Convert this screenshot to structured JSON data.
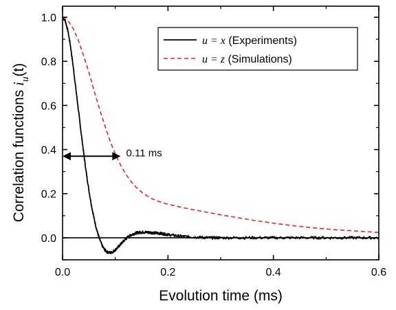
{
  "chart_data": {
    "type": "line",
    "xlabel": "Evolution time (ms)",
    "ylabel": {
      "prefix": "Correlation functions ",
      "var": "i",
      "subscript": "u",
      "suffix": "(t)"
    },
    "xlim": [
      0,
      0.6
    ],
    "ylim": [
      -0.1,
      1.05
    ],
    "x_ticks": [
      0.0,
      0.2,
      0.4,
      0.6
    ],
    "x_tick_labels": [
      "0.0",
      "0.2",
      "0.4",
      "0.6"
    ],
    "y_ticks": [
      0.0,
      0.2,
      0.4,
      0.6,
      0.8,
      1.0
    ],
    "y_tick_labels": [
      "0.0",
      "0.2",
      "0.4",
      "0.6",
      "0.8",
      "1.0"
    ],
    "grid": false,
    "legend_position": "top-right",
    "series": [
      {
        "name": "u = x (Experiments)",
        "legend_math": "u = x",
        "legend_text": " (Experiments)",
        "style": "solid",
        "color": "#000000",
        "x": [
          0.0,
          0.005,
          0.01,
          0.015,
          0.02,
          0.025,
          0.03,
          0.035,
          0.04,
          0.045,
          0.05,
          0.055,
          0.06,
          0.065,
          0.07,
          0.075,
          0.08,
          0.085,
          0.09,
          0.095,
          0.1,
          0.105,
          0.11,
          0.115,
          0.12,
          0.125,
          0.13,
          0.135,
          0.14,
          0.145,
          0.15,
          0.155,
          0.16,
          0.165,
          0.17,
          0.175,
          0.18,
          0.185,
          0.19,
          0.195,
          0.2,
          0.21,
          0.22,
          0.23,
          0.24,
          0.25,
          0.26,
          0.27,
          0.28,
          0.29,
          0.3,
          0.32,
          0.34,
          0.36,
          0.38,
          0.4,
          0.42,
          0.44,
          0.46,
          0.48,
          0.5,
          0.52,
          0.54,
          0.56,
          0.58,
          0.6
        ],
        "y": [
          1.0,
          0.985,
          0.94,
          0.87,
          0.78,
          0.68,
          0.58,
          0.48,
          0.385,
          0.295,
          0.215,
          0.145,
          0.085,
          0.035,
          -0.005,
          -0.035,
          -0.055,
          -0.065,
          -0.068,
          -0.064,
          -0.055,
          -0.043,
          -0.03,
          -0.017,
          -0.005,
          0.005,
          0.013,
          0.018,
          0.022,
          0.024,
          0.025,
          0.025,
          0.025,
          0.024,
          0.023,
          0.022,
          0.021,
          0.02,
          0.018,
          0.016,
          0.014,
          0.011,
          0.008,
          0.006,
          0.004,
          0.003,
          0.002,
          0.001,
          0.0,
          0.0,
          0.0,
          0.0,
          0.0,
          0.0,
          0.0,
          0.0,
          0.0,
          0.0,
          0.0,
          0.0,
          0.0,
          0.0,
          0.0,
          0.0,
          0.0,
          0.0
        ]
      },
      {
        "name": "u = z (Simulations)",
        "legend_math": "u = z",
        "legend_text": " (Simulations)",
        "style": "dashed",
        "color": "#e8212b",
        "x": [
          0.0,
          0.01,
          0.02,
          0.03,
          0.04,
          0.05,
          0.06,
          0.07,
          0.08,
          0.09,
          0.1,
          0.11,
          0.12,
          0.13,
          0.14,
          0.15,
          0.16,
          0.17,
          0.18,
          0.19,
          0.2,
          0.22,
          0.24,
          0.26,
          0.28,
          0.3,
          0.32,
          0.34,
          0.36,
          0.38,
          0.4,
          0.42,
          0.44,
          0.46,
          0.48,
          0.5,
          0.52,
          0.54,
          0.56,
          0.58,
          0.6
        ],
        "y": [
          1.0,
          0.985,
          0.95,
          0.895,
          0.825,
          0.75,
          0.665,
          0.585,
          0.51,
          0.44,
          0.38,
          0.33,
          0.288,
          0.255,
          0.228,
          0.207,
          0.19,
          0.177,
          0.167,
          0.159,
          0.152,
          0.141,
          0.131,
          0.122,
          0.113,
          0.104,
          0.096,
          0.088,
          0.08,
          0.073,
          0.066,
          0.06,
          0.054,
          0.049,
          0.044,
          0.04,
          0.036,
          0.033,
          0.03,
          0.027,
          0.024
        ]
      }
    ],
    "annotations": [
      {
        "text": "0.11 ms",
        "type": "double-arrow",
        "x_start": 0.0,
        "x_end": 0.11,
        "y": 0.37,
        "label_x": 0.118,
        "label_y": 0.385
      }
    ]
  }
}
